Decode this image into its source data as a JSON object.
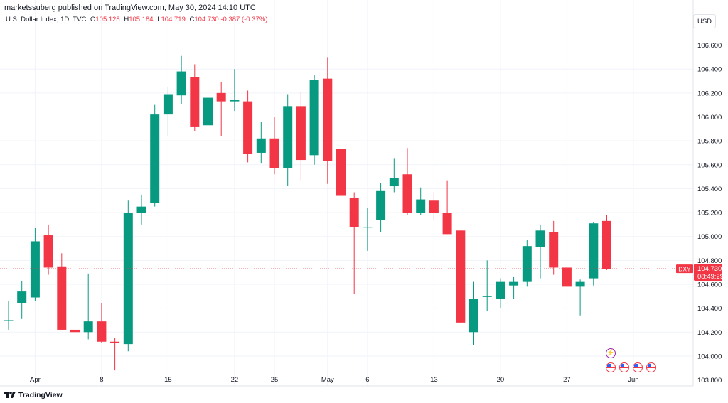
{
  "header": {
    "published": "marketssuberg published on TradingView.com, May 30, 2024 14:10 UTC"
  },
  "legend": {
    "symbol": "U.S. Dollar Index, 1D, TVC",
    "o_label": "O",
    "o": "105.128",
    "h_label": "H",
    "h": "105.184",
    "l_label": "L",
    "l": "104.719",
    "c_label": "C",
    "c": "104.730",
    "change": "-0.387 (-0.37%)"
  },
  "currency_button": "USD",
  "brand": "TradingView",
  "price_tag": {
    "symbol": "DXY",
    "price": "104.730",
    "countdown": "08:49:29"
  },
  "colors": {
    "up": "#089981",
    "down": "#f23645",
    "grid": "#f0f3fa",
    "axis_text": "#131722"
  },
  "chart_data": {
    "type": "candlestick",
    "ylim": [
      103.75,
      106.74
    ],
    "y_ticks": [
      103.8,
      104.0,
      104.2,
      104.4,
      104.6,
      104.8,
      105.0,
      105.2,
      105.4,
      105.6,
      105.8,
      106.0,
      106.2,
      106.4,
      106.6
    ],
    "y_tick_labels": [
      "103.800",
      "104.000",
      "104.200",
      "104.400",
      "104.600",
      "104.800",
      "105.000",
      "105.200",
      "105.400",
      "105.600",
      "105.800",
      "106.000",
      "106.200",
      "106.400",
      "106.600"
    ],
    "x_ticks": [
      {
        "label": "Apr",
        "index": 2
      },
      {
        "label": "8",
        "index": 7
      },
      {
        "label": "15",
        "index": 12
      },
      {
        "label": "22",
        "index": 17
      },
      {
        "label": "25",
        "index": 20
      },
      {
        "label": "May",
        "index": 24
      },
      {
        "label": "6",
        "index": 27
      },
      {
        "label": "13",
        "index": 32
      },
      {
        "label": "20",
        "index": 37
      },
      {
        "label": "27",
        "index": 42
      },
      {
        "label": "Jun",
        "index": 47
      }
    ],
    "last_price": 104.73,
    "candles": [
      {
        "o": 104.3,
        "h": 104.46,
        "l": 104.22,
        "c": 104.3
      },
      {
        "o": 104.44,
        "h": 104.63,
        "l": 104.31,
        "c": 104.54
      },
      {
        "o": 104.49,
        "h": 105.07,
        "l": 104.46,
        "c": 104.96
      },
      {
        "o": 105.01,
        "h": 105.1,
        "l": 104.68,
        "c": 104.74
      },
      {
        "o": 104.75,
        "h": 104.86,
        "l": 104.22,
        "c": 104.22
      },
      {
        "o": 104.22,
        "h": 104.24,
        "l": 103.92,
        "c": 104.2
      },
      {
        "o": 104.2,
        "h": 104.69,
        "l": 104.14,
        "c": 104.29
      },
      {
        "o": 104.29,
        "h": 104.44,
        "l": 104.11,
        "c": 104.12
      },
      {
        "o": 104.12,
        "h": 104.15,
        "l": 103.88,
        "c": 104.11
      },
      {
        "o": 104.1,
        "h": 105.3,
        "l": 104.04,
        "c": 105.2
      },
      {
        "o": 105.2,
        "h": 105.35,
        "l": 105.1,
        "c": 105.25
      },
      {
        "o": 105.28,
        "h": 106.1,
        "l": 105.25,
        "c": 106.02
      },
      {
        "o": 106.02,
        "h": 106.25,
        "l": 105.84,
        "c": 106.19
      },
      {
        "o": 106.18,
        "h": 106.51,
        "l": 106.11,
        "c": 106.38
      },
      {
        "o": 106.33,
        "h": 106.44,
        "l": 105.88,
        "c": 105.92
      },
      {
        "o": 105.93,
        "h": 106.17,
        "l": 105.74,
        "c": 106.16
      },
      {
        "o": 106.2,
        "h": 106.29,
        "l": 105.84,
        "c": 106.13
      },
      {
        "o": 106.13,
        "h": 106.4,
        "l": 106.05,
        "c": 106.14
      },
      {
        "o": 106.13,
        "h": 106.22,
        "l": 105.62,
        "c": 105.69
      },
      {
        "o": 105.7,
        "h": 105.96,
        "l": 105.61,
        "c": 105.82
      },
      {
        "o": 105.82,
        "h": 106.0,
        "l": 105.52,
        "c": 105.57
      },
      {
        "o": 105.57,
        "h": 106.19,
        "l": 105.42,
        "c": 106.09
      },
      {
        "o": 106.09,
        "h": 106.21,
        "l": 105.47,
        "c": 105.64
      },
      {
        "o": 105.68,
        "h": 106.35,
        "l": 105.6,
        "c": 106.31
      },
      {
        "o": 106.32,
        "h": 106.5,
        "l": 105.44,
        "c": 105.63
      },
      {
        "o": 105.73,
        "h": 105.9,
        "l": 105.3,
        "c": 105.34
      },
      {
        "o": 105.32,
        "h": 105.37,
        "l": 104.52,
        "c": 105.08
      },
      {
        "o": 105.08,
        "h": 105.24,
        "l": 104.88,
        "c": 105.08
      },
      {
        "o": 105.14,
        "h": 105.45,
        "l": 105.04,
        "c": 105.38
      },
      {
        "o": 105.42,
        "h": 105.65,
        "l": 105.37,
        "c": 105.49
      },
      {
        "o": 105.52,
        "h": 105.74,
        "l": 105.18,
        "c": 105.2
      },
      {
        "o": 105.2,
        "h": 105.41,
        "l": 105.18,
        "c": 105.31
      },
      {
        "o": 105.3,
        "h": 105.37,
        "l": 105.14,
        "c": 105.2
      },
      {
        "o": 105.2,
        "h": 105.47,
        "l": 105.02,
        "c": 105.02
      },
      {
        "o": 105.05,
        "h": 105.05,
        "l": 104.28,
        "c": 104.28
      },
      {
        "o": 104.2,
        "h": 104.62,
        "l": 104.09,
        "c": 104.48
      },
      {
        "o": 104.5,
        "h": 104.8,
        "l": 104.38,
        "c": 104.5
      },
      {
        "o": 104.48,
        "h": 104.65,
        "l": 104.4,
        "c": 104.62
      },
      {
        "o": 104.59,
        "h": 104.66,
        "l": 104.48,
        "c": 104.62
      },
      {
        "o": 104.62,
        "h": 104.97,
        "l": 104.58,
        "c": 104.92
      },
      {
        "o": 104.91,
        "h": 105.1,
        "l": 104.65,
        "c": 105.05
      },
      {
        "o": 105.04,
        "h": 105.13,
        "l": 104.68,
        "c": 104.74
      },
      {
        "o": 104.74,
        "h": 104.75,
        "l": 104.58,
        "c": 104.58
      },
      {
        "o": 104.58,
        "h": 104.64,
        "l": 104.34,
        "c": 104.62
      },
      {
        "o": 104.65,
        "h": 105.12,
        "l": 104.59,
        "c": 105.11
      },
      {
        "o": 105.13,
        "h": 105.18,
        "l": 104.72,
        "c": 104.73
      }
    ]
  }
}
